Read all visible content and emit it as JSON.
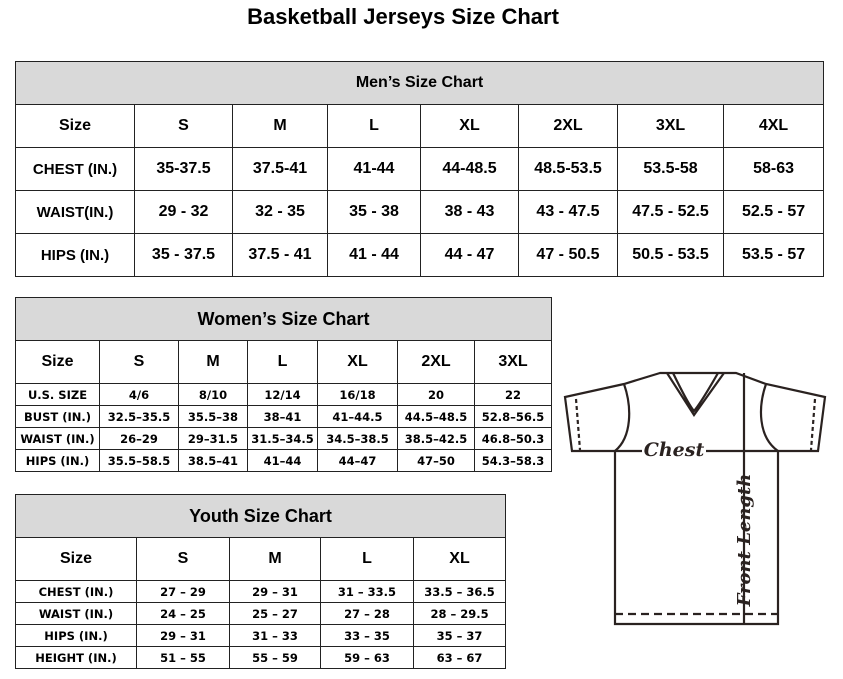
{
  "title": "Basketball Jerseys Size Chart",
  "men": {
    "heading": "Men’s Size Chart",
    "sizes": [
      "Size",
      "S",
      "M",
      "L",
      "XL",
      "2XL",
      "3XL",
      "4XL"
    ],
    "rows": [
      [
        "CHEST (IN.)",
        "35-37.5",
        "37.5-41",
        "41-44",
        "44-48.5",
        "48.5-53.5",
        "53.5-58",
        "58-63"
      ],
      [
        "WAIST(IN.)",
        "29 - 32",
        "32 - 35",
        "35 - 38",
        "38 - 43",
        "43 - 47.5",
        "47.5 - 52.5",
        "52.5 - 57"
      ],
      [
        "HIPS (IN.)",
        "35 - 37.5",
        "37.5 - 41",
        "41 - 44",
        "44 - 47",
        "47 - 50.5",
        "50.5 - 53.5",
        "53.5 - 57"
      ]
    ]
  },
  "women": {
    "heading": "Women’s Size Chart",
    "sizes": [
      "Size",
      "S",
      "M",
      "L",
      "XL",
      "2XL",
      "3XL"
    ],
    "rows": [
      [
        "U.S. SIZE",
        "4/6",
        "8/10",
        "12/14",
        "16/18",
        "20",
        "22"
      ],
      [
        "BUST (IN.)",
        "32.5–35.5",
        "35.5–38",
        "38–41",
        "41–44.5",
        "44.5–48.5",
        "52.8–56.5"
      ],
      [
        "WAIST (IN.)",
        "26–29",
        "29–31.5",
        "31.5–34.5",
        "34.5–38.5",
        "38.5–42.5",
        "46.8–50.3"
      ],
      [
        "HIPS (IN.)",
        "35.5–58.5",
        "38.5–41",
        "41–44",
        "44–47",
        "47–50",
        "54.3–58.3"
      ]
    ]
  },
  "youth": {
    "heading": "Youth Size Chart",
    "sizes": [
      "Size",
      "S",
      "M",
      "L",
      "XL"
    ],
    "rows": [
      [
        "CHEST (IN.)",
        "27 – 29",
        "29 – 31",
        "31 – 33.5",
        "33.5 – 36.5"
      ],
      [
        "WAIST (IN.)",
        "24 – 25",
        "25 – 27",
        "27 – 28",
        "28 – 29.5"
      ],
      [
        "HIPS (IN.)",
        "29 – 31",
        "31 – 33",
        "33 – 35",
        "35 – 37"
      ],
      [
        "HEIGHT (IN.)",
        "51 – 55",
        "55 – 59",
        "59 – 63",
        "63 – 67"
      ]
    ]
  },
  "diagram": {
    "chest_label": "Chest",
    "length_label": "Front Length"
  }
}
